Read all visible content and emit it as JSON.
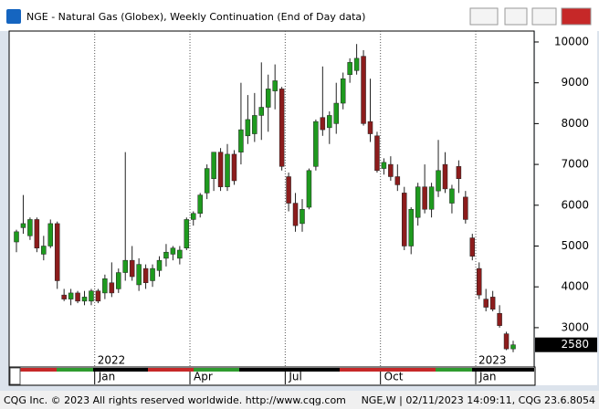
{
  "window_title": "NGE - Natural Gas (Globex), Weekly Continuation (End of Day data)",
  "footer_left": "CQG Inc. © 2023 All rights reserved worldwide. http://www.cqg.com",
  "footer_right": "NGE,W | 02/11/2023 14:09:11, CQG 23.6.8054",
  "chart_data": {
    "type": "candlestick",
    "categories": [
      null,
      null,
      null,
      null,
      null,
      null,
      null,
      null,
      null,
      null,
      null,
      null,
      "Jan",
      null,
      null,
      null,
      null,
      null,
      null,
      null,
      null,
      null,
      null,
      null,
      null,
      null,
      "Apr",
      null,
      null,
      null,
      null,
      null,
      null,
      null,
      null,
      null,
      null,
      null,
      null,
      null,
      "Jul",
      null,
      null,
      null,
      null,
      null,
      null,
      null,
      null,
      null,
      null,
      null,
      null,
      null,
      "Oct",
      null,
      null,
      null,
      null,
      null,
      null,
      null,
      null,
      null,
      null,
      null,
      null,
      null,
      "Jan",
      null,
      null,
      null,
      null,
      null
    ],
    "years": [
      null,
      null,
      null,
      null,
      null,
      null,
      null,
      null,
      null,
      null,
      null,
      null,
      "2022",
      null,
      null,
      null,
      null,
      null,
      null,
      null,
      null,
      null,
      null,
      null,
      null,
      null,
      null,
      null,
      null,
      null,
      null,
      null,
      null,
      null,
      null,
      null,
      null,
      null,
      null,
      null,
      null,
      null,
      null,
      null,
      null,
      null,
      null,
      null,
      null,
      null,
      null,
      null,
      null,
      null,
      null,
      null,
      null,
      null,
      null,
      null,
      null,
      null,
      null,
      null,
      null,
      null,
      null,
      null,
      "2023",
      null,
      null,
      null,
      null,
      null
    ],
    "open": [
      5100,
      5450,
      5250,
      5650,
      4800,
      5000,
      5550,
      3800,
      3700,
      3850,
      3650,
      3650,
      3900,
      3850,
      4100,
      3950,
      4350,
      4650,
      4050,
      4450,
      4150,
      4400,
      4700,
      4800,
      4700,
      4950,
      5650,
      5800,
      6300,
      6650,
      7300,
      6450,
      7250,
      7300,
      7700,
      7750,
      8200,
      8400,
      8800,
      8850,
      6700,
      6050,
      5550,
      5950,
      6950,
      8150,
      7900,
      8000,
      8500,
      9200,
      9300,
      9650,
      8050,
      7700,
      6900,
      7000,
      6700,
      6300,
      5000,
      5700,
      6450,
      5900,
      6350,
      7000,
      6050,
      6950,
      6200,
      5200,
      4450,
      3700,
      3750,
      3350,
      2850,
      2480
    ],
    "high": [
      5400,
      6250,
      5700,
      5700,
      5250,
      5650,
      5600,
      3950,
      3950,
      3900,
      3900,
      3950,
      3950,
      4300,
      4600,
      4450,
      7300,
      5000,
      4700,
      4550,
      4550,
      4750,
      5050,
      5000,
      5000,
      5700,
      5850,
      6300,
      7000,
      7300,
      7400,
      7500,
      7350,
      9000,
      8700,
      8750,
      9500,
      9200,
      9450,
      8900,
      6800,
      6300,
      6150,
      6900,
      8100,
      9400,
      8300,
      9000,
      9250,
      9600,
      9950,
      9800,
      9100,
      7800,
      7150,
      7200,
      7000,
      6450,
      5950,
      6550,
      7000,
      6550,
      7600,
      7300,
      6500,
      7100,
      6350,
      5300,
      4600,
      3950,
      3900,
      3550,
      2900,
      2680
    ],
    "low": [
      4850,
      5300,
      5150,
      4850,
      4650,
      4950,
      3950,
      3650,
      3550,
      3600,
      3550,
      3550,
      3600,
      3700,
      3750,
      3850,
      4150,
      4150,
      3900,
      3950,
      4000,
      4250,
      4500,
      4650,
      4550,
      4900,
      5500,
      5700,
      6150,
      6350,
      6350,
      6350,
      6500,
      7000,
      7500,
      7550,
      7600,
      7800,
      8350,
      6850,
      5850,
      5350,
      5350,
      5900,
      6850,
      7700,
      7500,
      7750,
      8350,
      9000,
      9200,
      7950,
      7550,
      6800,
      6750,
      6600,
      6350,
      4900,
      4800,
      5500,
      5800,
      5700,
      6200,
      6300,
      5800,
      6300,
      5550,
      4650,
      3700,
      3400,
      3400,
      3000,
      2450,
      2400
    ],
    "close": [
      5350,
      5550,
      5650,
      4950,
      5000,
      5550,
      4150,
      3700,
      3850,
      3650,
      3750,
      3900,
      3650,
      4200,
      3850,
      4350,
      4650,
      4250,
      4550,
      4100,
      4450,
      4650,
      4850,
      4950,
      4900,
      5650,
      5800,
      6250,
      6900,
      7300,
      6450,
      7250,
      6600,
      7850,
      8100,
      8200,
      8400,
      8850,
      9050,
      6950,
      6050,
      5500,
      5900,
      6850,
      8050,
      7850,
      8200,
      8500,
      9100,
      9500,
      9600,
      8000,
      7750,
      6850,
      7050,
      6700,
      6500,
      5000,
      5900,
      6450,
      5900,
      6450,
      6850,
      6400,
      6400,
      6650,
      5650,
      4750,
      3800,
      3500,
      3450,
      3050,
      2480,
      2580
    ],
    "up_color": "#1e9a1e",
    "down_color": "#8c1c1c",
    "ylim": [
      2036,
      10268
    ],
    "yticks": [
      3000,
      4000,
      5000,
      6000,
      7000,
      8000,
      9000,
      10000
    ],
    "last_value": 2580
  }
}
